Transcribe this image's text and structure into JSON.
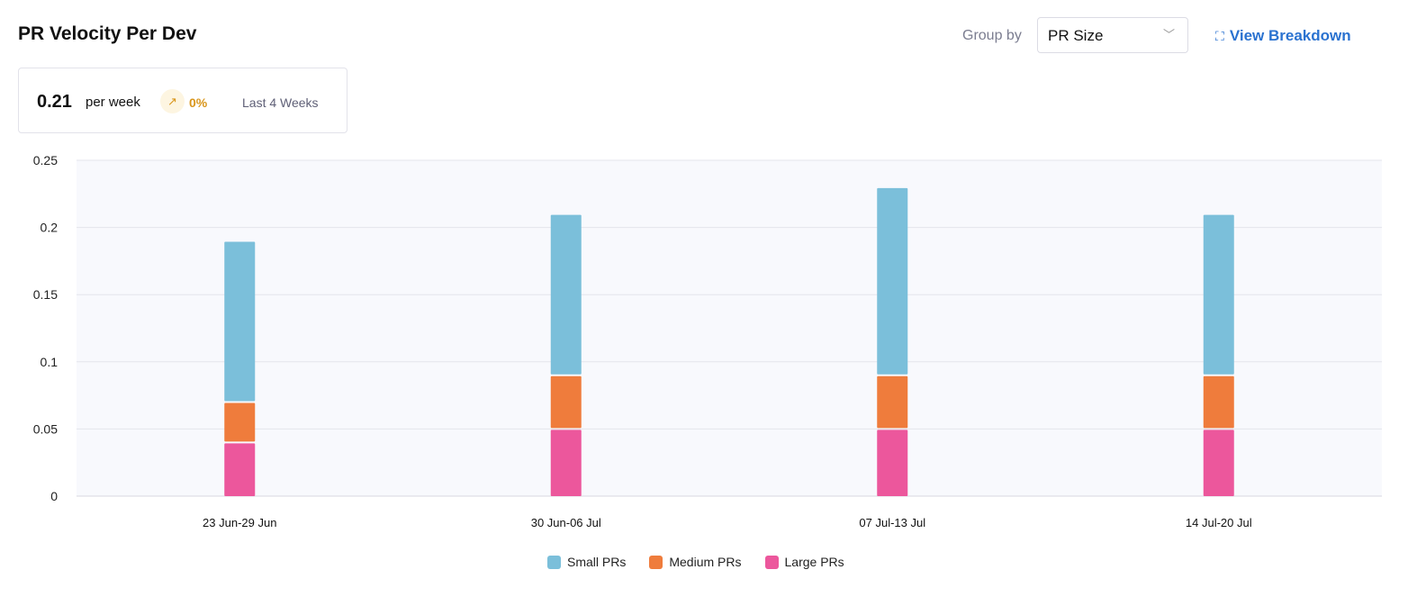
{
  "header": {
    "title": "PR Velocity Per Dev",
    "group_by_label": "Group by",
    "group_by_value": "PR Size",
    "view_breakdown": "View Breakdown"
  },
  "summary": {
    "value": "0.21",
    "unit": "per week",
    "trend_icon": "arrow-up-right-icon",
    "change": "0%",
    "period": "Last 4 Weeks",
    "trend_color": "#d9961c"
  },
  "chart_data": {
    "type": "bar",
    "stacked": true,
    "categories": [
      "23 Jun-29 Jun",
      "30 Jun-06 Jul",
      "07 Jul-13 Jul",
      "14 Jul-20 Jul"
    ],
    "series": [
      {
        "name": "Large PRs",
        "color": "#ec579c",
        "values": [
          0.04,
          0.05,
          0.05,
          0.05
        ]
      },
      {
        "name": "Medium PRs",
        "color": "#ef7c3c",
        "values": [
          0.03,
          0.04,
          0.04,
          0.04
        ]
      },
      {
        "name": "Small PRs",
        "color": "#7bbfda",
        "values": [
          0.12,
          0.12,
          0.14,
          0.12
        ]
      }
    ],
    "yticks": [
      "0",
      "0.05",
      "0.1",
      "0.15",
      "0.2",
      "0.25"
    ],
    "ylim": [
      0,
      0.25
    ],
    "grid": true,
    "legend": "bottom"
  }
}
